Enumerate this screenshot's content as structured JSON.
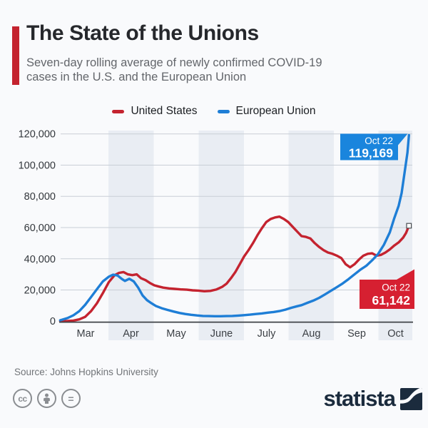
{
  "header": {
    "title": "The State of the Unions",
    "subtitle_line1": "Seven-day rolling average of newly confirmed COVID-19",
    "subtitle_line2": "cases in the U.S. and the European Union",
    "accent_color": "#c4232f"
  },
  "legend": [
    {
      "label": "United States",
      "color": "#c4232f"
    },
    {
      "label": "European Union",
      "color": "#1e7ed6"
    }
  ],
  "chart_data": {
    "type": "line",
    "title": "The State of the Unions",
    "subtitle": "Seven-day rolling average of newly confirmed COVID-19 cases in the U.S. and the European Union",
    "ylim": [
      0,
      120000
    ],
    "grid": true,
    "yticks": [
      "0",
      "20,000",
      "40,000",
      "60,000",
      "80,000",
      "100,000",
      "120,000"
    ],
    "xticks": [
      "Mar",
      "Apr",
      "May",
      "June",
      "July",
      "Aug",
      "Sep",
      "Oct"
    ],
    "series": [
      {
        "name": "United States",
        "color": "#c4232f",
        "points": [
          [
            "Feb 28",
            60
          ],
          [
            "Mar 4",
            150
          ],
          [
            "Mar 8",
            400
          ],
          [
            "Mar 12",
            1200
          ],
          [
            "Mar 16",
            2800
          ],
          [
            "Mar 20",
            6500
          ],
          [
            "Mar 24",
            11500
          ],
          [
            "Mar 28",
            18000
          ],
          [
            "Apr 1",
            25000
          ],
          [
            "Apr 5",
            29500
          ],
          [
            "Apr 8",
            31000
          ],
          [
            "Apr 11",
            31500
          ],
          [
            "Apr 14",
            30000
          ],
          [
            "Apr 17",
            29500
          ],
          [
            "Apr 20",
            30000
          ],
          [
            "Apr 23",
            27500
          ],
          [
            "Apr 26",
            26300
          ],
          [
            "Apr 29",
            24500
          ],
          [
            "May 2",
            23000
          ],
          [
            "May 5",
            22200
          ],
          [
            "May 8",
            21500
          ],
          [
            "May 12",
            21000
          ],
          [
            "May 16",
            20700
          ],
          [
            "May 20",
            20400
          ],
          [
            "May 24",
            20200
          ],
          [
            "May 28",
            19800
          ],
          [
            "Jun 1",
            19600
          ],
          [
            "Jun 5",
            19200
          ],
          [
            "Jun 9",
            19400
          ],
          [
            "Jun 13",
            20300
          ],
          [
            "Jun 17",
            22000
          ],
          [
            "Jun 20",
            24000
          ],
          [
            "Jun 23",
            27500
          ],
          [
            "Jun 26",
            31500
          ],
          [
            "Jun 29",
            36500
          ],
          [
            "Jul 2",
            41500
          ],
          [
            "Jul 5",
            45500
          ],
          [
            "Jul 8",
            50000
          ],
          [
            "Jul 11",
            55000
          ],
          [
            "Jul 14",
            59500
          ],
          [
            "Jul 17",
            63500
          ],
          [
            "Jul 20",
            65500
          ],
          [
            "Jul 23",
            66500
          ],
          [
            "Jul 26",
            67000
          ],
          [
            "Jul 29",
            65500
          ],
          [
            "Aug 1",
            63500
          ],
          [
            "Aug 4",
            60500
          ],
          [
            "Aug 7",
            57500
          ],
          [
            "Aug 10",
            54500
          ],
          [
            "Aug 13",
            54000
          ],
          [
            "Aug 16",
            53000
          ],
          [
            "Aug 19",
            50000
          ],
          [
            "Aug 22",
            47500
          ],
          [
            "Aug 25",
            45500
          ],
          [
            "Aug 28",
            44000
          ],
          [
            "Aug 31",
            43200
          ],
          [
            "Sep 3",
            42000
          ],
          [
            "Sep 6",
            40500
          ],
          [
            "Sep 9",
            36500
          ],
          [
            "Sep 12",
            34500
          ],
          [
            "Sep 15",
            36500
          ],
          [
            "Sep 18",
            39500
          ],
          [
            "Sep 21",
            42000
          ],
          [
            "Sep 24",
            43200
          ],
          [
            "Sep 27",
            43500
          ],
          [
            "Sep 30",
            42000
          ],
          [
            "Oct 3",
            42500
          ],
          [
            "Oct 6",
            44000
          ],
          [
            "Oct 9",
            46000
          ],
          [
            "Oct 12",
            48500
          ],
          [
            "Oct 15",
            50500
          ],
          [
            "Oct 18",
            53500
          ],
          [
            "Oct 20",
            56500
          ],
          [
            "Oct 22",
            61142
          ]
        ]
      },
      {
        "name": "European Union",
        "color": "#1e7ed6",
        "points": [
          [
            "Feb 28",
            600
          ],
          [
            "Mar 4",
            2000
          ],
          [
            "Mar 8",
            3800
          ],
          [
            "Mar 12",
            6500
          ],
          [
            "Mar 16",
            10500
          ],
          [
            "Mar 20",
            15500
          ],
          [
            "Mar 24",
            20500
          ],
          [
            "Mar 28",
            25500
          ],
          [
            "Apr 1",
            28500
          ],
          [
            "Apr 4",
            29800
          ],
          [
            "Apr 7",
            29300
          ],
          [
            "Apr 10",
            27000
          ],
          [
            "Apr 12",
            25800
          ],
          [
            "Apr 15",
            27200
          ],
          [
            "Apr 18",
            25500
          ],
          [
            "Apr 21",
            21500
          ],
          [
            "Apr 24",
            16500
          ],
          [
            "Apr 27",
            13500
          ],
          [
            "Apr 30",
            11500
          ],
          [
            "May 3",
            9800
          ],
          [
            "May 7",
            8300
          ],
          [
            "May 11",
            7200
          ],
          [
            "May 15",
            6200
          ],
          [
            "May 19",
            5300
          ],
          [
            "May 23",
            4600
          ],
          [
            "May 27",
            4100
          ],
          [
            "May 31",
            3700
          ],
          [
            "Jun 4",
            3400
          ],
          [
            "Jun 8",
            3300
          ],
          [
            "Jun 12",
            3200
          ],
          [
            "Jun 16",
            3200
          ],
          [
            "Jun 20",
            3300
          ],
          [
            "Jun 24",
            3400
          ],
          [
            "Jun 28",
            3600
          ],
          [
            "Jul 2",
            3900
          ],
          [
            "Jul 6",
            4200
          ],
          [
            "Jul 10",
            4600
          ],
          [
            "Jul 14",
            5000
          ],
          [
            "Jul 18",
            5500
          ],
          [
            "Jul 22",
            5900
          ],
          [
            "Jul 26",
            6500
          ],
          [
            "Jul 30",
            7400
          ],
          [
            "Aug 3",
            8600
          ],
          [
            "Aug 7",
            9600
          ],
          [
            "Aug 10",
            10300
          ],
          [
            "Aug 14",
            11800
          ],
          [
            "Aug 18",
            13200
          ],
          [
            "Aug 22",
            15000
          ],
          [
            "Aug 26",
            17200
          ],
          [
            "Aug 30",
            19500
          ],
          [
            "Sep 3",
            21800
          ],
          [
            "Sep 7",
            24200
          ],
          [
            "Sep 11",
            27000
          ],
          [
            "Sep 15",
            30000
          ],
          [
            "Sep 19",
            33000
          ],
          [
            "Sep 23",
            35500
          ],
          [
            "Sep 27",
            39000
          ],
          [
            "Oct 1",
            43000
          ],
          [
            "Oct 5",
            49000
          ],
          [
            "Oct 9",
            57000
          ],
          [
            "Oct 12",
            66000
          ],
          [
            "Oct 15",
            74000
          ],
          [
            "Oct 17",
            82000
          ],
          [
            "Oct 19",
            95000
          ],
          [
            "Oct 21",
            108000
          ],
          [
            "Oct 22",
            119169
          ]
        ]
      }
    ],
    "annotations": [
      {
        "series": "European Union",
        "date_label": "Oct 22",
        "value_label": "119,169",
        "color": "#1a85dd"
      },
      {
        "series": "United States",
        "date_label": "Oct 22",
        "value_label": "61,142",
        "color": "#d62031"
      }
    ]
  },
  "footer": {
    "source": "Source: Johns Hopkins University",
    "brand": "statista",
    "brand_color": "#1b2b3d"
  }
}
